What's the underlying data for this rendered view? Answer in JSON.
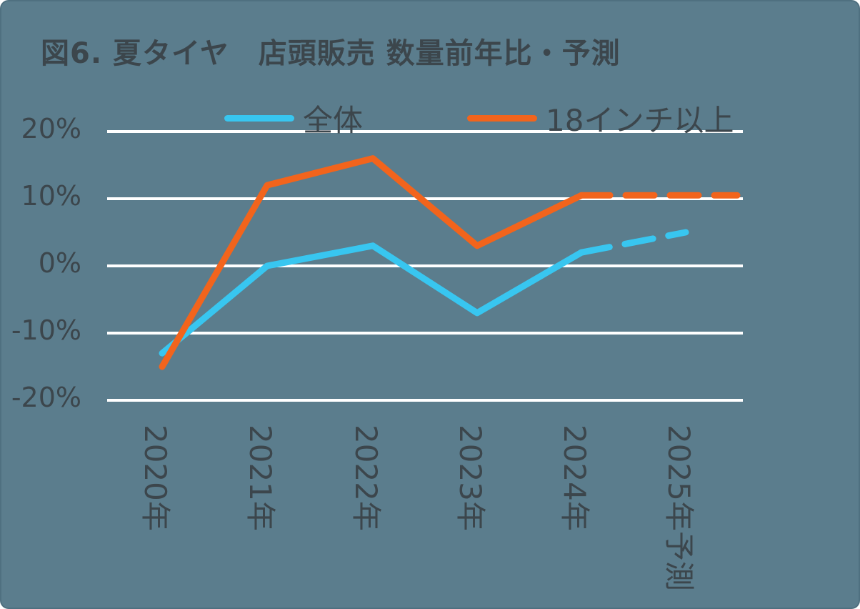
{
  "chart_data": {
    "type": "line",
    "title": "図6. 夏タイヤ　店頭販売 数量前年比・予測",
    "background": "#5b7d8d",
    "text_color": "#3c464c",
    "gridline_color": "#ffffff",
    "grid": "horizontal",
    "legend_position": "top",
    "xlabel": "",
    "ylabel": "",
    "ylim": [
      -20,
      20
    ],
    "categories": [
      "2020年",
      "2021年",
      "2022年",
      "2023年",
      "2024年",
      "2025年予測"
    ],
    "yticks": [
      {
        "value": 20,
        "label": "20%"
      },
      {
        "value": 10,
        "label": "10%"
      },
      {
        "value": 0,
        "label": "0%"
      },
      {
        "value": -10,
        "label": "-10%"
      },
      {
        "value": -20,
        "label": "-20%"
      }
    ],
    "series": [
      {
        "name": "全体",
        "color": "#38c6f0",
        "values": [
          -13,
          0,
          3,
          -7,
          2,
          5
        ],
        "forecast_from_index": 4,
        "forecast_to_plot_edge": false
      },
      {
        "name": "18インチ以上",
        "color": "#f2641c",
        "values": [
          -15,
          12,
          16,
          3,
          10.5,
          10.5
        ],
        "forecast_from_index": 4,
        "forecast_to_plot_edge": true
      }
    ]
  }
}
